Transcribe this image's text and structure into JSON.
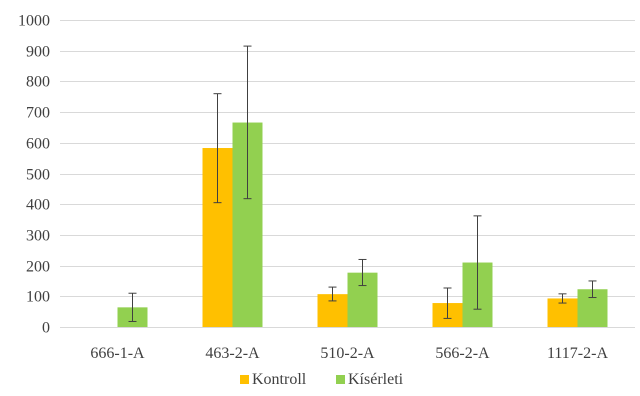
{
  "chart_data": {
    "type": "bar",
    "categories": [
      "666-1-A",
      "463-2-A",
      "510-2-A",
      "566-2-A",
      "1117-2-A"
    ],
    "series": [
      {
        "name": "Kontroll",
        "color": "#FFC000",
        "values": [
          0,
          583,
          107,
          78,
          93
        ],
        "error_low": [
          0,
          405,
          85,
          28,
          78
        ],
        "error_high": [
          0,
          760,
          130,
          127,
          108
        ]
      },
      {
        "name": "Kísérleti",
        "color": "#92D050",
        "values": [
          64,
          666,
          177,
          210,
          123
        ],
        "error_low": [
          18,
          418,
          135,
          58,
          96
        ],
        "error_high": [
          110,
          915,
          220,
          362,
          150
        ]
      }
    ],
    "ylim": [
      0,
      1000
    ],
    "yticks": [
      "0",
      "100",
      "200",
      "300",
      "400",
      "500",
      "600",
      "700",
      "800",
      "900",
      "1000"
    ],
    "grid": true,
    "legend_position": "bottom",
    "title": "",
    "xlabel": "",
    "ylabel": ""
  }
}
